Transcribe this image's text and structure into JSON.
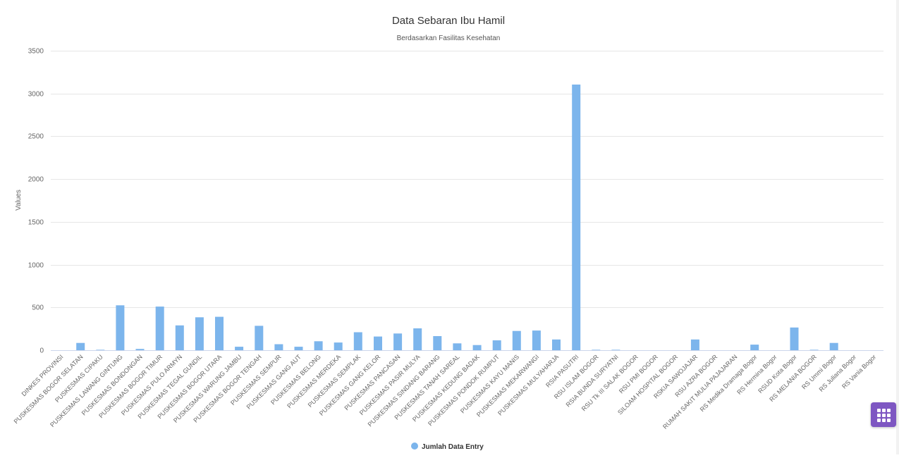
{
  "chart_data": {
    "type": "bar",
    "title": "Data Sebaran Ibu Hamil",
    "subtitle": "Berdasarkan Fasilitas Kesehatan",
    "ylabel": "Values",
    "xlabel": "",
    "ylim": [
      0,
      3500
    ],
    "yticks": [
      0,
      500,
      1000,
      1500,
      2000,
      2500,
      3000,
      3500
    ],
    "grid": true,
    "legend": "bottom-center",
    "categories": [
      "DINKES PROVINSI",
      "PUSKESMAS BOGOR SELATAN",
      "PUSKESMAS CIPAKU",
      "PUSKESMAS LAWANG GINTUNG",
      "PUSKESMAS BONDONGAN",
      "PUSKESMAS BOGOR TIMUR",
      "PUSKESMAS PULO ARMYN",
      "PUSKESMAS TEGAL GUNDIL",
      "PUSKESMAS BOGOR UTARA",
      "PUSKESMAS WARUNG JAMBU",
      "PUSKESMAS BOGOR TENGAH",
      "PUSKESMAS SEMPUR",
      "PUSKESMAS GANG AUT",
      "PUSKESMAS BELONG",
      "PUSKESMAS MERDEKA",
      "PUSKESMAS SEMPLAK",
      "PUSKESMAS GANG KELOR",
      "PUSKESMAS PANCASAN",
      "PUSKESMAS PASIR MULYA",
      "PUSKESMAS SINDANG BARANG",
      "PUSKESMAS TANAH SAREAL",
      "PUSKESMAS KEDUNG BADAK",
      "PUSKESMAS PONDOK RUMPUT",
      "PUSKESMAS KAYU MANIS",
      "PUSKESMAS MEKARWANGI",
      "PUSKESMAS MULYAHARJA",
      "RSIA PASUTRI",
      "RSU ISLAM BOGOR",
      "RSIA BUNDA SURYATNI",
      "RSU Tk III SALAK BOGOR",
      "RSU PMI BOGOR",
      "SILOAM HOSPITAL BOGOR",
      "RSKIA SAWOJAJAR",
      "RSU AZRA BOGOR",
      "RUMAH SAKIT MULIA PAJAJARAN",
      "RS Medika Dramaga Bogor",
      "RS Hermina Bogor",
      "RSUD Kota Bogor",
      "RS MELANIA BOGOR",
      "RS Ummi Bogor",
      "RS Juliana Bogor",
      "RS Vania Bogor"
    ],
    "series": [
      {
        "name": "Jumlah Data Entry",
        "color": "#7cb5ec",
        "values": [
          0,
          85,
          5,
          525,
          15,
          510,
          290,
          385,
          390,
          40,
          285,
          70,
          40,
          105,
          90,
          210,
          160,
          195,
          255,
          165,
          80,
          60,
          115,
          225,
          230,
          125,
          3105,
          5,
          5,
          0,
          0,
          0,
          125,
          0,
          0,
          65,
          0,
          265,
          5,
          85,
          0,
          0
        ]
      }
    ]
  },
  "icons": {
    "menu": "grid-menu-icon"
  },
  "colors": {
    "bar": "#7cb5ec",
    "menu_button": "#7e57c2",
    "gridline": "#e6e6e6",
    "text": "#333333",
    "axis_text": "#666666"
  }
}
